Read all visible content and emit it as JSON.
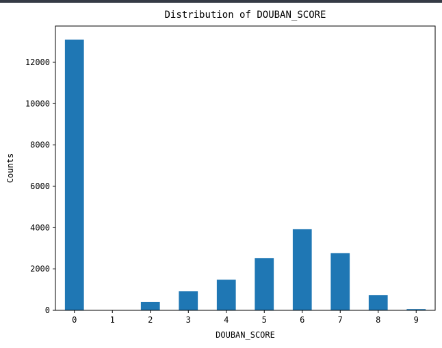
{
  "chart_data": {
    "type": "bar",
    "title": "Distribution of DOUBAN_SCORE",
    "xlabel": "DOUBAN_SCORE",
    "ylabel": "Counts",
    "categories": [
      "0",
      "1",
      "2",
      "3",
      "4",
      "5",
      "6",
      "7",
      "8",
      "9"
    ],
    "values": [
      13100,
      0,
      400,
      920,
      1480,
      2520,
      3930,
      2770,
      730,
      60
    ],
    "yticks": [
      0,
      2000,
      4000,
      6000,
      8000,
      10000,
      12000
    ],
    "ylim": [
      0,
      13755
    ],
    "grid": false,
    "bar_color": "#1f77b4"
  }
}
